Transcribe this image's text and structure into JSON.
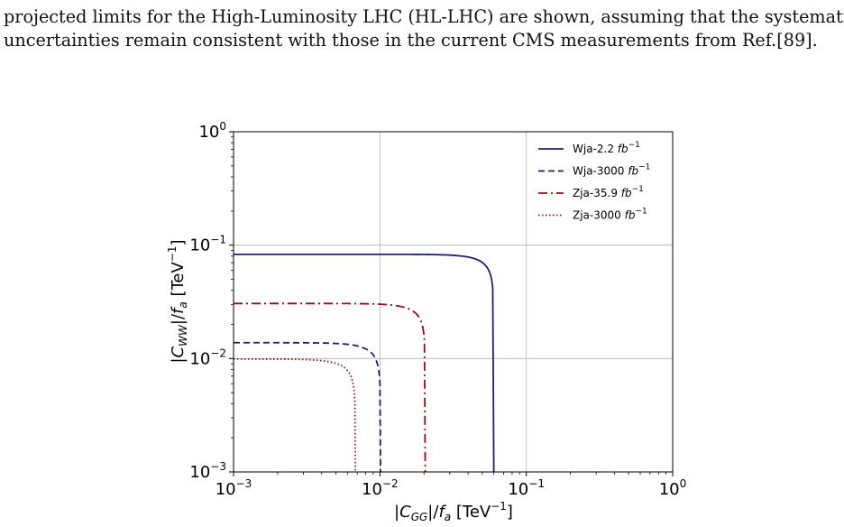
{
  "document": {
    "caption_lines": [
      "projected limits for the High-Luminosity LHC (HL-LHC) are shown, assuming that the systematic",
      "uncertainties remain consistent with those in the current CMS measurements from Ref.[89]."
    ]
  },
  "chart_data": {
    "type": "line",
    "title": "",
    "xlabel": "|C_GG|/f_a [TeV^-1]",
    "ylabel": "|C_WW|/f_a [TeV^-1]",
    "xscale": "log",
    "yscale": "log",
    "xlim": [
      0.001,
      1
    ],
    "ylim": [
      0.001,
      1
    ],
    "x_ticks": [
      {
        "value": 0.001,
        "base": "10",
        "exp": "−3"
      },
      {
        "value": 0.01,
        "base": "10",
        "exp": "−2"
      },
      {
        "value": 0.1,
        "base": "10",
        "exp": "−1"
      },
      {
        "value": 1,
        "base": "10",
        "exp": "0"
      }
    ],
    "y_ticks": [
      {
        "value": 0.001,
        "base": "10",
        "exp": "−3"
      },
      {
        "value": 0.01,
        "base": "10",
        "exp": "−2"
      },
      {
        "value": 0.1,
        "base": "10",
        "exp": "−1"
      },
      {
        "value": 1,
        "base": "10",
        "exp": "0"
      }
    ],
    "grid": true,
    "legend_position": "top-right",
    "series": [
      {
        "name": "Wja-2.2",
        "unit": "fb",
        "unit_exp": "−1",
        "color": "#1f1f6e",
        "style": "solid",
        "x_limit": 0.06,
        "y_limit": 0.083
      },
      {
        "name": "Wja-3000",
        "unit": "fb",
        "unit_exp": "−1",
        "color": "#1f1f6e",
        "style": "dashed",
        "x_limit": 0.0101,
        "y_limit": 0.0138
      },
      {
        "name": "Zja-35.9",
        "unit": "fb",
        "unit_exp": "−1",
        "color": "#9a0d0d",
        "style": "dashdot",
        "x_limit": 0.0204,
        "y_limit": 0.0306
      },
      {
        "name": "Zja-3000",
        "unit": "fb",
        "unit_exp": "−1",
        "color": "#9a0d0d",
        "style": "dotted",
        "x_limit": 0.0068,
        "y_limit": 0.0099
      }
    ]
  }
}
